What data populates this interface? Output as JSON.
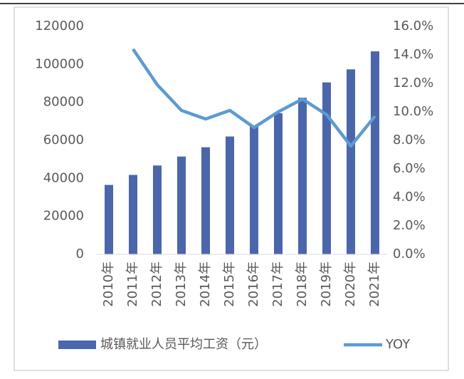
{
  "chart_data": {
    "type": "bar-line",
    "categories": [
      "2010年",
      "2011年",
      "2012年",
      "2013年",
      "2014年",
      "2015年",
      "2016年",
      "2017年",
      "2018年",
      "2019年",
      "2020年",
      "2021年"
    ],
    "series": [
      {
        "name": "城镇就业人员平均工资（元）",
        "type": "bar",
        "color": "#4a66ac",
        "values": [
          36539,
          41799,
          46769,
          51483,
          56360,
          62029,
          67569,
          74318,
          82413,
          90501,
          97379,
          106837
        ]
      },
      {
        "name": "YOY",
        "type": "line",
        "axis": "y2",
        "color": "#5b9bd5",
        "values": [
          null,
          14.4,
          11.9,
          10.1,
          9.5,
          10.1,
          8.9,
          10.0,
          10.9,
          9.8,
          7.6,
          9.7
        ]
      }
    ],
    "ylim": [
      0,
      120000
    ],
    "yticks": [
      0,
      20000,
      40000,
      60000,
      80000,
      100000,
      120000
    ],
    "y2lim": [
      0,
      16
    ],
    "y2ticks": [
      {
        "value": 0,
        "label": "0.0%"
      },
      {
        "value": 2,
        "label": "2.0%"
      },
      {
        "value": 4,
        "label": "4.0%"
      },
      {
        "value": 6,
        "label": "6.0%"
      },
      {
        "value": 8,
        "label": "8.0%"
      },
      {
        "value": 10,
        "label": "10.0%"
      },
      {
        "value": 12,
        "label": "12.0%"
      },
      {
        "value": 14,
        "label": "14.0%"
      },
      {
        "value": 16,
        "label": "16.0%"
      }
    ],
    "legend": "bottom",
    "grid": false
  }
}
